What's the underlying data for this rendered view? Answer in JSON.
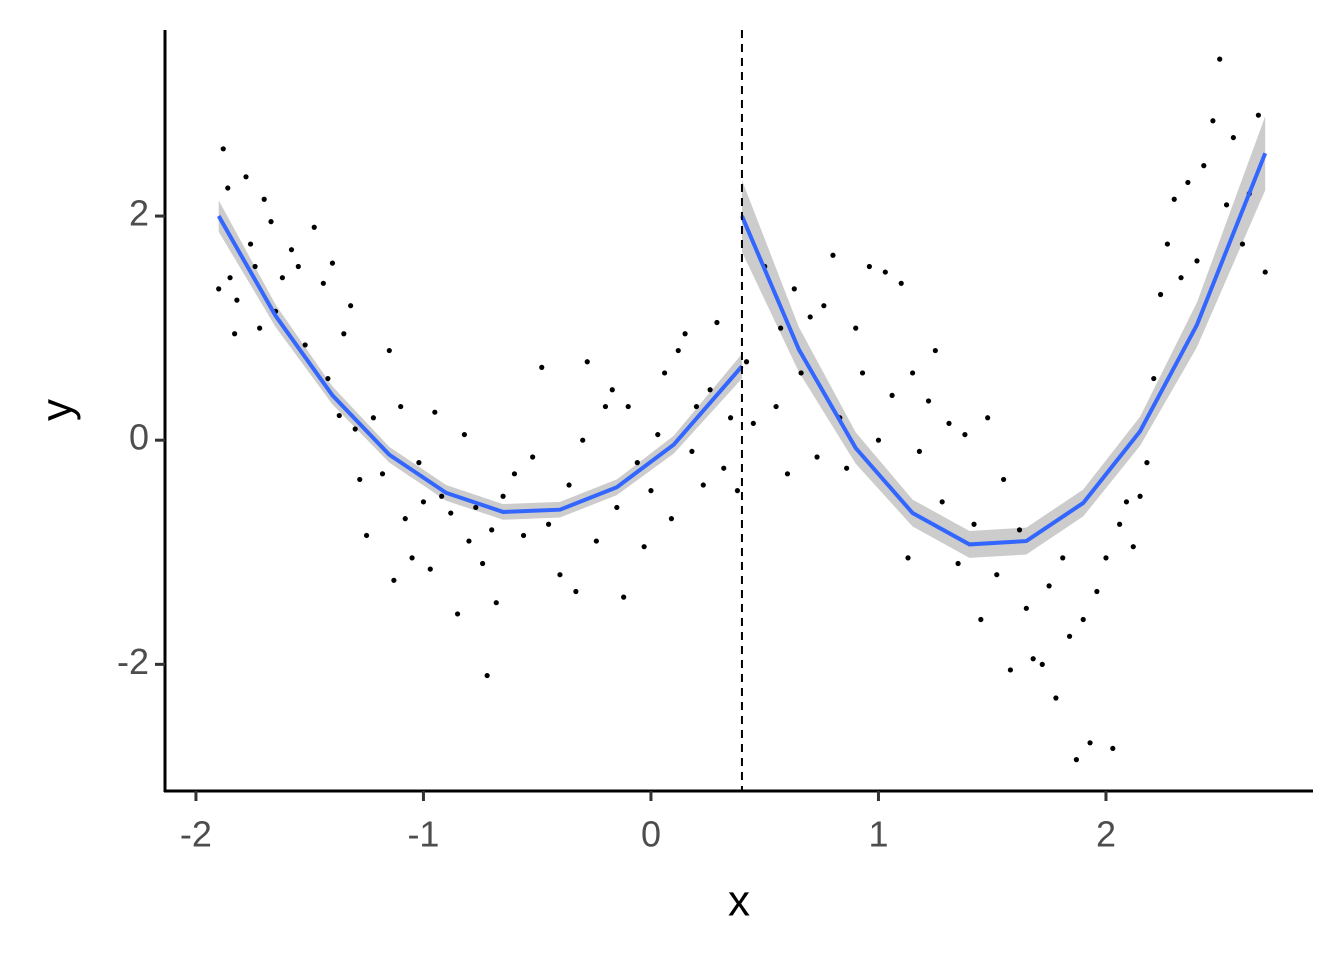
{
  "chart_data": {
    "type": "scatter",
    "x_label": "x",
    "y_label": "y",
    "xlim": [
      -2.136,
      2.91
    ],
    "ylim": [
      -3.13,
      3.66
    ],
    "xticks": [
      -2,
      -1,
      0,
      1,
      2
    ],
    "yticks": [
      -2,
      0,
      2
    ],
    "cutoff": 0.4,
    "points": {
      "color": "#000000",
      "x": [
        -1.9,
        -1.88,
        -1.86,
        -1.85,
        -1.83,
        -1.82,
        -1.78,
        -1.76,
        -1.74,
        -1.72,
        -1.7,
        -1.67,
        -1.65,
        -1.62,
        -1.58,
        -1.55,
        -1.52,
        -1.48,
        -1.44,
        -1.42,
        -1.4,
        -1.37,
        -1.35,
        -1.32,
        -1.3,
        -1.28,
        -1.25,
        -1.22,
        -1.18,
        -1.15,
        -1.13,
        -1.1,
        -1.08,
        -1.05,
        -1.02,
        -1.0,
        -0.97,
        -0.95,
        -0.92,
        -0.88,
        -0.85,
        -0.82,
        -0.8,
        -0.77,
        -0.74,
        -0.72,
        -0.7,
        -0.68,
        -0.65,
        -0.6,
        -0.56,
        -0.52,
        -0.48,
        -0.45,
        -0.4,
        -0.36,
        -0.33,
        -0.3,
        -0.28,
        -0.24,
        -0.2,
        -0.17,
        -0.15,
        -0.12,
        -0.1,
        -0.06,
        -0.03,
        0.0,
        0.03,
        0.06,
        0.09,
        0.12,
        0.15,
        0.18,
        0.2,
        0.23,
        0.26,
        0.29,
        0.32,
        0.35,
        0.38,
        0.42,
        0.45,
        0.5,
        0.55,
        0.57,
        0.6,
        0.63,
        0.66,
        0.7,
        0.73,
        0.76,
        0.8,
        0.83,
        0.86,
        0.9,
        0.93,
        0.96,
        1.0,
        1.03,
        1.06,
        1.1,
        1.13,
        1.15,
        1.18,
        1.22,
        1.25,
        1.28,
        1.31,
        1.35,
        1.38,
        1.42,
        1.45,
        1.48,
        1.52,
        1.55,
        1.58,
        1.62,
        1.65,
        1.68,
        1.72,
        1.75,
        1.78,
        1.81,
        1.84,
        1.87,
        1.9,
        1.93,
        1.96,
        2.0,
        2.03,
        2.06,
        2.09,
        2.12,
        2.15,
        2.18,
        2.21,
        2.24,
        2.27,
        2.3,
        2.33,
        2.36,
        2.4,
        2.43,
        2.47,
        2.5,
        2.53,
        2.56,
        2.6,
        2.63,
        2.67,
        2.7
      ],
      "y": [
        1.35,
        2.6,
        2.25,
        1.45,
        0.95,
        1.25,
        2.35,
        1.75,
        1.55,
        1.0,
        2.15,
        1.95,
        1.15,
        1.45,
        1.7,
        1.55,
        0.85,
        1.9,
        1.4,
        0.55,
        1.58,
        0.22,
        0.95,
        1.2,
        0.1,
        -0.35,
        -0.85,
        0.2,
        -0.3,
        0.8,
        -1.25,
        0.3,
        -0.7,
        -1.05,
        -0.2,
        -0.55,
        -1.15,
        0.25,
        -0.5,
        -0.65,
        -1.55,
        0.05,
        -0.9,
        -0.6,
        -1.1,
        -2.1,
        -0.8,
        -1.45,
        -0.5,
        -0.3,
        -0.85,
        -0.15,
        0.65,
        -0.75,
        -1.2,
        -0.4,
        -1.35,
        0.0,
        0.7,
        -0.9,
        0.3,
        0.45,
        -0.6,
        -1.4,
        0.3,
        -0.2,
        -0.95,
        -0.45,
        0.05,
        0.6,
        -0.7,
        0.8,
        0.95,
        -0.1,
        0.3,
        -0.4,
        0.45,
        1.05,
        -0.25,
        0.2,
        -0.45,
        0.7,
        0.15,
        1.55,
        0.3,
        1.0,
        -0.3,
        1.35,
        0.6,
        1.1,
        -0.15,
        1.2,
        1.65,
        0.2,
        -0.25,
        1.0,
        0.6,
        1.55,
        0.0,
        1.5,
        0.4,
        1.4,
        -1.05,
        0.6,
        -0.1,
        0.35,
        0.8,
        -0.55,
        0.15,
        -1.1,
        0.05,
        -0.75,
        -1.6,
        0.2,
        -1.2,
        -0.35,
        -2.05,
        -0.8,
        -1.5,
        -1.95,
        -2.0,
        -1.3,
        -2.3,
        -1.05,
        -1.75,
        -2.85,
        -1.6,
        -2.7,
        -1.35,
        -1.05,
        -2.75,
        -0.75,
        -0.55,
        -0.95,
        -0.5,
        -0.2,
        0.55,
        1.3,
        1.75,
        2.15,
        1.45,
        2.3,
        1.6,
        2.45,
        2.85,
        3.4,
        2.1,
        2.7,
        1.75,
        2.2,
        2.9,
        1.5
      ]
    },
    "fits": [
      {
        "color": "#3366FF",
        "band_color": "#cccccc",
        "x": [
          -1.9,
          -1.65,
          -1.4,
          -1.15,
          -0.9,
          -0.65,
          -0.4,
          -0.15,
          0.1,
          0.4
        ],
        "y": [
          2.0,
          1.11,
          0.4,
          -0.13,
          -0.47,
          -0.64,
          -0.62,
          -0.42,
          -0.04,
          0.66
        ],
        "lower": [
          1.86,
          1.01,
          0.32,
          -0.2,
          -0.54,
          -0.71,
          -0.69,
          -0.49,
          -0.12,
          0.55
        ],
        "upper": [
          2.14,
          1.21,
          0.48,
          -0.06,
          -0.4,
          -0.57,
          -0.55,
          -0.35,
          0.04,
          0.77
        ]
      },
      {
        "color": "#3366FF",
        "band_color": "#cccccc",
        "x": [
          0.4,
          0.65,
          0.9,
          1.15,
          1.4,
          1.65,
          1.9,
          2.15,
          2.4,
          2.7
        ],
        "y": [
          2.0,
          0.81,
          -0.07,
          -0.65,
          -0.93,
          -0.9,
          -0.56,
          0.08,
          1.03,
          2.56
        ],
        "lower": [
          1.68,
          0.61,
          -0.21,
          -0.77,
          -1.05,
          -1.02,
          -0.68,
          -0.05,
          0.83,
          2.23
        ],
        "upper": [
          2.32,
          1.01,
          0.07,
          -0.53,
          -0.81,
          -0.78,
          -0.44,
          0.21,
          1.23,
          2.89
        ]
      }
    ]
  }
}
